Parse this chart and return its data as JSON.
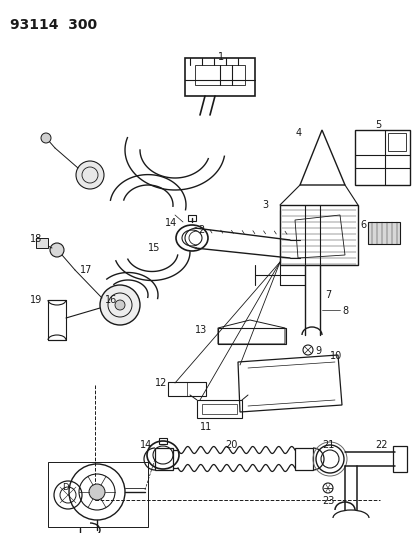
{
  "title": "93114  300",
  "bg_color": "#ffffff",
  "line_color": "#1a1a1a",
  "fig_width": 4.14,
  "fig_height": 5.33,
  "dpi": 100
}
